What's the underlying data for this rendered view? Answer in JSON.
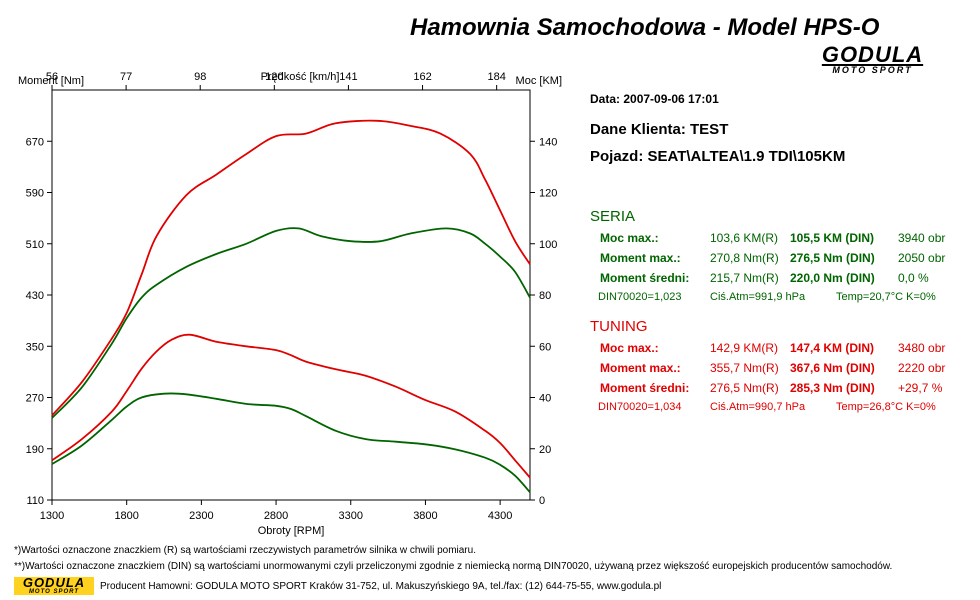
{
  "header": {
    "title": "Hamownia Samochodowa   -   Model HPS-O",
    "logo_main": "GODULA",
    "logo_sub": "MOTO SPORT"
  },
  "info": {
    "date": "Data: 2007-09-06  17:01",
    "client": "Dane Klienta: TEST",
    "vehicle": "Pojazd: SEAT\\ALTEA\\1.9 TDI\\105KM"
  },
  "seria": {
    "title": "SERIA",
    "rows": [
      {
        "label": "Moc max.:",
        "r": "103,6 KM(R)",
        "din": "105,5 KM (DIN)",
        "extra": "3940 obr"
      },
      {
        "label": "Moment max.:",
        "r": "270,8 Nm(R)",
        "din": "276,5 Nm (DIN)",
        "extra": "2050 obr"
      },
      {
        "label": "Moment średni:",
        "r": "215,7 Nm(R)",
        "din": "220,0 Nm (DIN)",
        "extra": "0,0 %"
      }
    ],
    "cond": {
      "din": "DIN70020=1,023",
      "atm": "Ciś.Atm=991,9 hPa",
      "temp": "Temp=20,7°C  K=0%"
    }
  },
  "tuning": {
    "title": "TUNING",
    "rows": [
      {
        "label": "Moc max.:",
        "r": "142,9 KM(R)",
        "din": "147,4 KM (DIN)",
        "extra": "3480 obr"
      },
      {
        "label": "Moment max.:",
        "r": "355,7 Nm(R)",
        "din": "367,6 Nm (DIN)",
        "extra": "2220 obr"
      },
      {
        "label": "Moment średni:",
        "r": "276,5 Nm(R)",
        "din": "285,3 Nm (DIN)",
        "extra": "+29,7 %"
      }
    ],
    "cond": {
      "din": "DIN70020=1,034",
      "atm": "Ciś.Atm=990,7 hPa",
      "temp": "Temp=26,8°C  K=0%"
    }
  },
  "footer": {
    "note1": "*)Wartości oznaczone znaczkiem (R) są wartościami rzeczywistych parametrów silnika w chwili pomiaru.",
    "note2": "**)Wartości oznaczone znaczkiem (DIN) są wartościami unormowanymi czyli przeliczonymi zgodnie z niemiecką normą DIN70020, używaną przez większość europejskich producentów samochodów.",
    "producer": "Producent Hamowni: GODULA MOTO SPORT Kraków 31-752, ul. Makuszyńskiego 9A, tel./fax: (12) 644-75-55, www.godula.pl"
  },
  "colors": {
    "seria": "#006400",
    "tuning": "#e00000"
  },
  "chart_data": {
    "type": "line",
    "xlabel": "Obroty [RPM]",
    "ylabel_left": "Moment [Nm]",
    "ylabel_right": "Moc [KM]",
    "x2label": "Prędkość [km/h]",
    "xlim": [
      1300,
      4500
    ],
    "ylim_left": [
      110,
      750
    ],
    "ylim_right": [
      0,
      160
    ],
    "x_ticks": [
      1300,
      1800,
      2300,
      2800,
      3300,
      3800,
      4300
    ],
    "x2_ticks": [
      "56",
      "77",
      "98",
      "120",
      "141",
      "162",
      "184"
    ],
    "y_left_ticks": [
      110,
      190,
      270,
      350,
      430,
      510,
      590,
      670
    ],
    "y_right_ticks": [
      0,
      20,
      40,
      60,
      80,
      100,
      120,
      140
    ],
    "grid": false,
    "series": [
      {
        "name": "TUNING",
        "kind": "torque",
        "axis": "left",
        "color": "#e00000",
        "x": [
          1300,
          1500,
          1700,
          1800,
          1900,
          2000,
          2100,
          2220,
          2400,
          2600,
          2800,
          2900,
          3000,
          3200,
          3400,
          3600,
          3800,
          4000,
          4200,
          4300,
          4400,
          4500
        ],
        "y": [
          172,
          205,
          248,
          280,
          315,
          342,
          360,
          368,
          357,
          350,
          344,
          336,
          326,
          314,
          304,
          287,
          266,
          248,
          218,
          199,
          172,
          145
        ]
      },
      {
        "name": "SERIA",
        "kind": "torque",
        "axis": "left",
        "color": "#006400",
        "x": [
          1300,
          1500,
          1700,
          1800,
          1900,
          2050,
          2200,
          2400,
          2600,
          2800,
          2900,
          3000,
          3200,
          3400,
          3600,
          3800,
          4000,
          4200,
          4300,
          4400,
          4500
        ],
        "y": [
          166,
          195,
          235,
          256,
          270,
          276,
          275,
          268,
          260,
          257,
          252,
          241,
          218,
          205,
          201,
          197,
          189,
          176,
          165,
          148,
          122
        ]
      },
      {
        "name": "TUNING",
        "kind": "power",
        "axis": "right",
        "color": "#e00000",
        "x": [
          1300,
          1500,
          1700,
          1800,
          1900,
          2000,
          2200,
          2400,
          2600,
          2800,
          3000,
          3200,
          3480,
          3700,
          3900,
          4100,
          4200,
          4300,
          4400,
          4500
        ],
        "y": [
          33,
          46,
          63,
          73,
          88,
          103,
          119,
          127,
          135,
          142,
          143,
          147,
          148,
          146,
          143,
          135,
          125,
          113,
          101,
          92
        ]
      },
      {
        "name": "SERIA",
        "kind": "power",
        "axis": "right",
        "color": "#006400",
        "x": [
          1300,
          1500,
          1700,
          1800,
          1900,
          2000,
          2200,
          2400,
          2600,
          2800,
          2950,
          3100,
          3300,
          3500,
          3700,
          3940,
          4100,
          4200,
          4300,
          4400,
          4500
        ],
        "y": [
          32,
          44,
          61,
          71,
          79,
          84,
          91,
          96,
          100,
          105,
          106,
          103,
          101,
          101,
          104,
          106,
          104,
          100,
          95,
          89,
          79
        ]
      }
    ]
  }
}
